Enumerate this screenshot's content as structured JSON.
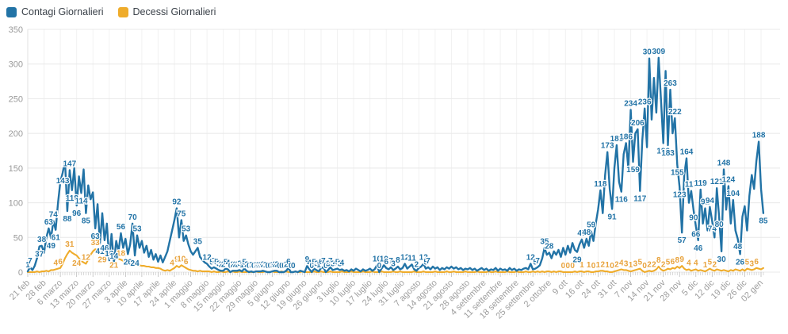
{
  "legend": {
    "items": [
      {
        "label": "Contagi Giornalieri",
        "color": "#2273A6"
      },
      {
        "label": "Decessi Giornalieri",
        "color": "#EFAC2B"
      }
    ]
  },
  "chart_data": {
    "type": "line",
    "title": "",
    "grid": true,
    "legend_position": "top-left",
    "ylim": [
      0,
      350
    ],
    "y_ticks": [
      350,
      300,
      250,
      200,
      150,
      100,
      50,
      0
    ],
    "x_tick_labels": [
      "21 feb",
      "28 feb",
      "6 marzo",
      "13 marzo",
      "20 marzo",
      "27 marzo",
      "3 aprile",
      "10 aprile",
      "17 aprile",
      "24 aprile",
      "1 maggio",
      "8 maggio",
      "15 maggio",
      "22 maggio",
      "29 maggio",
      "5 giugno",
      "12 giugno",
      "19 giugno",
      "26 giugno",
      "3 luglio",
      "10 luglio",
      "17 luglio",
      "24 luglio",
      "31 luglio",
      "7 agosto",
      "14 agosto",
      "21 agosto",
      "28 agosto",
      "4 settembre",
      "11 settembre",
      "18 settembre",
      "25 settembre",
      "2 ottobre",
      "9 ott",
      "16 ott",
      "24 ott",
      "31 ott",
      "7 nov",
      "14 nov",
      "21 nov",
      "28 nov",
      "5 dic",
      "12 dic",
      "19 dic",
      "26 dic",
      "02 gen"
    ],
    "series": [
      {
        "name": "Contagi Giornalieri",
        "color": "#2273A6",
        "label_color": "#2273A6",
        "values": [
          1,
          7,
          3,
          9,
          20,
          37,
          38,
          28,
          50,
          63,
          49,
          74,
          61,
          100,
          130,
          143,
          160,
          88,
          147,
          118,
          150,
          96,
          138,
          114,
          148,
          85,
          125,
          105,
          115,
          63,
          98,
          41,
          85,
          46,
          70,
          17,
          55,
          14,
          45,
          30,
          56,
          35,
          48,
          26,
          40,
          70,
          24,
          53,
          35,
          45,
          28,
          38,
          22,
          32,
          18,
          26,
          15,
          24,
          14,
          22,
          30,
          45,
          60,
          75,
          92,
          50,
          75,
          45,
          53,
          40,
          30,
          25,
          30,
          35,
          22,
          18,
          14,
          12,
          8,
          5,
          7,
          5,
          3,
          2,
          2,
          5,
          4,
          0,
          2,
          2,
          2,
          3,
          1,
          5,
          2,
          0,
          1,
          0,
          1,
          1,
          1,
          2,
          1,
          0,
          0,
          1,
          2,
          2,
          0,
          0,
          0,
          2,
          6,
          0,
          0,
          1,
          0,
          2,
          1,
          0,
          9,
          4,
          0,
          5,
          3,
          1,
          6,
          7,
          0,
          3,
          7,
          3,
          4,
          5,
          3,
          4,
          2,
          3,
          1,
          4,
          2,
          5,
          3,
          1,
          4,
          2,
          3,
          5,
          2,
          4,
          10,
          0,
          5,
          10,
          6,
          4,
          7,
          3,
          5,
          8,
          4,
          6,
          12,
          5,
          8,
          11,
          4,
          2,
          6,
          8,
          12,
          5,
          7,
          4,
          8,
          5,
          7,
          3,
          6,
          4,
          7,
          5,
          8,
          5,
          7,
          4,
          6,
          3,
          5,
          4,
          6,
          3,
          5,
          2,
          4,
          6,
          3,
          5,
          2,
          4,
          3,
          6,
          2,
          5,
          3,
          4,
          2,
          6,
          3,
          5,
          2,
          4,
          3,
          5,
          6,
          4,
          12,
          4,
          5,
          7,
          10,
          20,
          35,
          25,
          28,
          20,
          30,
          25,
          32,
          22,
          35,
          25,
          38,
          28,
          42,
          32,
          29,
          40,
          47,
          35,
          48,
          38,
          59,
          45,
          70,
          90,
          118,
          85,
          140,
          173,
          120,
          91,
          150,
          183,
          130,
          116,
          170,
          186,
          150,
          234,
          159,
          200,
          206,
          117,
          190,
          236,
          180,
          308,
          220,
          280,
          230,
          309,
          250,
          186,
          290,
          183,
          263,
          200,
          222,
          155,
          123,
          57,
          140,
          164,
          100,
          117,
          90,
          66,
          46,
          119,
          70,
          92,
          60,
          94,
          74,
          50,
          121,
          80,
          30,
          148,
          90,
          124,
          70,
          104,
          60,
          48,
          26,
          80,
          95,
          60,
          110,
          140,
          120,
          160,
          188,
          120,
          85
        ],
        "labeled_indices": [
          0,
          1,
          5,
          6,
          9,
          10,
          11,
          12,
          15,
          17,
          18,
          19,
          21,
          23,
          25,
          29,
          31,
          33,
          35,
          37,
          40,
          43,
          45,
          46,
          47,
          64,
          66,
          68,
          73,
          77,
          79,
          80,
          81,
          82,
          83,
          84,
          85,
          86,
          87,
          88,
          89,
          90,
          91,
          92,
          93,
          94,
          95,
          96,
          97,
          98,
          99,
          100,
          101,
          102,
          103,
          104,
          105,
          106,
          107,
          108,
          109,
          110,
          111,
          112,
          113,
          114,
          120,
          121,
          122,
          123,
          124,
          125,
          126,
          127,
          128,
          129,
          130,
          131,
          132,
          133,
          134,
          135,
          150,
          151,
          153,
          154,
          156,
          157,
          159,
          162,
          165,
          167,
          170,
          171,
          172,
          216,
          218,
          219,
          222,
          224,
          236,
          238,
          240,
          242,
          246,
          249,
          251,
          253,
          255,
          257,
          259,
          260,
          262,
          263,
          265,
          267,
          271,
          273,
          275,
          276,
          278,
          279,
          280,
          281,
          283,
          285,
          286,
          287,
          288,
          289,
          291,
          293,
          294,
          296,
          297,
          298,
          299,
          301,
          303,
          305,
          306,
          314,
          316
        ]
      },
      {
        "name": "Decessi Giornalieri",
        "color": "#EFAC2B",
        "label_color": "#E8A33D",
        "values": [
          0,
          0,
          0,
          0,
          1,
          0,
          1,
          1,
          2,
          1,
          3,
          3,
          4,
          5,
          6,
          12,
          20,
          26,
          31,
          28,
          26,
          24,
          20,
          16,
          14,
          12,
          18,
          25,
          30,
          33,
          31,
          30,
          29,
          27,
          25,
          24,
          22,
          21,
          20,
          19,
          18,
          16,
          15,
          14,
          13,
          12,
          11,
          10,
          10,
          9,
          9,
          8,
          8,
          7,
          7,
          6,
          6,
          5,
          3,
          2,
          3,
          2,
          4,
          6,
          9,
          7,
          10,
          8,
          6,
          4,
          3,
          2,
          2,
          1,
          2,
          1,
          1,
          1,
          1,
          0,
          1,
          0,
          0,
          1,
          0,
          0,
          1,
          0,
          1,
          0,
          0,
          1,
          0,
          0,
          0,
          1,
          0,
          0,
          1,
          0,
          0,
          0,
          1,
          0,
          0,
          1,
          0,
          0,
          0,
          1,
          0,
          1,
          0,
          0,
          0,
          1,
          0,
          0,
          1,
          0,
          0,
          0,
          0,
          1,
          0,
          0,
          1,
          0,
          0,
          0,
          1,
          0,
          0,
          0,
          0,
          1,
          0,
          0,
          0,
          1,
          0,
          0,
          0,
          0,
          1,
          0,
          0,
          0,
          1,
          0,
          0,
          0,
          1,
          0,
          0,
          0,
          0,
          1,
          0,
          0,
          1,
          0,
          0,
          0,
          0,
          0,
          1,
          0,
          0,
          0,
          1,
          0,
          0,
          0,
          0,
          1,
          0,
          0,
          0,
          0,
          1,
          0,
          0,
          1,
          0,
          0,
          0,
          0,
          1,
          0,
          0,
          0,
          0,
          1,
          0,
          0,
          0,
          0,
          1,
          0,
          0,
          1,
          0,
          0,
          0,
          0,
          1,
          0,
          0,
          0,
          1,
          0,
          0,
          0,
          1,
          0,
          0,
          1,
          0,
          1,
          0,
          1,
          0,
          1,
          1,
          0,
          1,
          0,
          1,
          1,
          0,
          0,
          0,
          0,
          0,
          1,
          0,
          1,
          1,
          0,
          1,
          1,
          0,
          0,
          1,
          1,
          2,
          2,
          1,
          1,
          0,
          0,
          1,
          2,
          3,
          4,
          3,
          3,
          2,
          1,
          2,
          3,
          4,
          5,
          2,
          0,
          1,
          2,
          1,
          2,
          4,
          8,
          4,
          2,
          3,
          5,
          4,
          6,
          5,
          8,
          6,
          9,
          5,
          3,
          4,
          2,
          3,
          4,
          2,
          3,
          2,
          1,
          3,
          5,
          3,
          2,
          4,
          3,
          2,
          3,
          2,
          1,
          3,
          2,
          4,
          3,
          2,
          4,
          2,
          5,
          4,
          3,
          4,
          6,
          5,
          4,
          6
        ],
        "labeled_indices": [
          12,
          14,
          18,
          21,
          25,
          29,
          32,
          37,
          40,
          62,
          64,
          66,
          68,
          230,
          232,
          234,
          238,
          241,
          243,
          245,
          247,
          249,
          251,
          253,
          255,
          257,
          259,
          261,
          263,
          265,
          267,
          269,
          271,
          273,
          275,
          277,
          279,
          281,
          284,
          287,
          291,
          293,
          295,
          309,
          311,
          313
        ]
      }
    ]
  }
}
